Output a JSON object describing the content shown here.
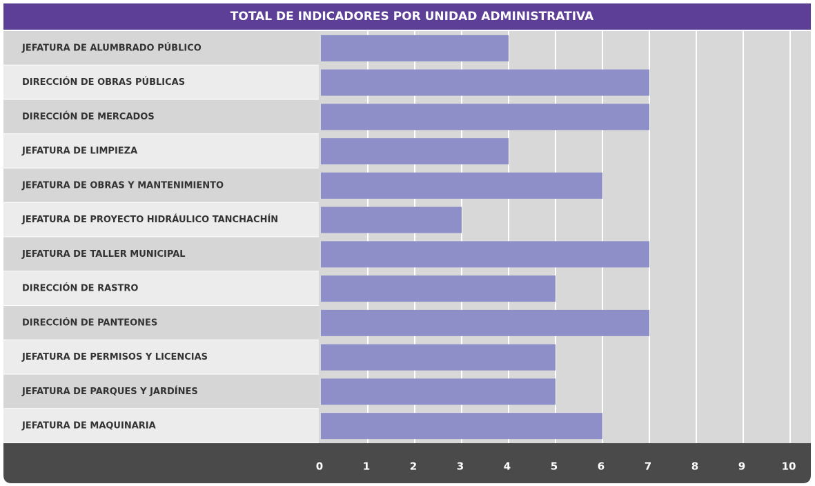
{
  "chart_data": {
    "type": "bar",
    "orientation": "horizontal",
    "title": "TOTAL DE INDICADORES POR UNIDAD ADMINISTRATIVA",
    "categories": [
      "JEFATURA DE ALUMBRADO PÚBLICO",
      "DIRECCIÓN DE OBRAS PÚBLICAS",
      "DIRECCIÓN DE MERCADOS",
      "JEFATURA DE LIMPIEZA",
      "JEFATURA DE OBRAS Y MANTENIMIENTO",
      "JEFATURA DE PROYECTO HIDRÁULICO TANCHACHÍN",
      "JEFATURA DE TALLER MUNICIPAL",
      "DIRECCIÓN DE RASTRO",
      "DIRECCIÓN DE PANTEONES",
      "JEFATURA DE PERMISOS Y LICENCIAS",
      "JEFATURA DE PARQUES Y JARDÍNES",
      "JEFATURA DE MAQUINARIA"
    ],
    "values": [
      4,
      7,
      7,
      4,
      6,
      3,
      7,
      5,
      7,
      5,
      5,
      6
    ],
    "color": "#8e8ec8",
    "xlim": [
      0,
      10
    ],
    "xticks": [
      0,
      1,
      2,
      3,
      4,
      5,
      6,
      7,
      8,
      9,
      10
    ],
    "grid": true
  }
}
